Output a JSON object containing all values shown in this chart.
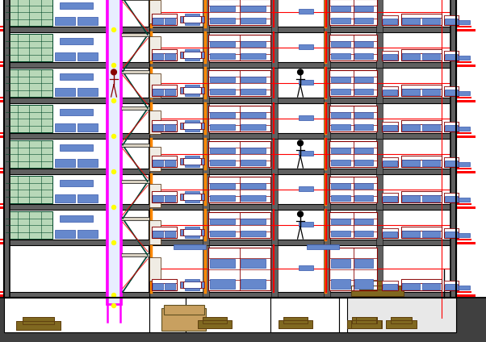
{
  "bg": "#ffffff",
  "gray_slab": "#606060",
  "gray_wall": "#606060",
  "black": "#000000",
  "red": "#ff0000",
  "orange": "#ff8800",
  "magenta": "#ff00ff",
  "blue": "#6688cc",
  "dark_red": "#880000",
  "car_color": "#806820",
  "stair_dark": "#004838",
  "white": "#ffffff",
  "yellow": "#ffff00",
  "ground_dark": "#404040",
  "tan": "#c8a060",
  "fig_w": 6.02,
  "fig_h": 4.24
}
